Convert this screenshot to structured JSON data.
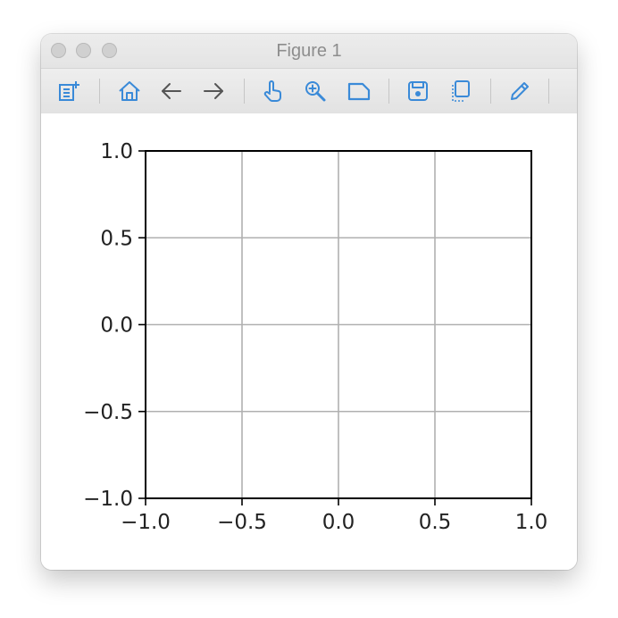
{
  "window": {
    "title": "Figure 1"
  },
  "toolbar": {
    "tools": [
      {
        "name": "edit-parameters-icon"
      },
      {
        "name": "home-icon"
      },
      {
        "name": "back-icon"
      },
      {
        "name": "forward-icon"
      },
      {
        "name": "pan-icon"
      },
      {
        "name": "zoom-icon"
      },
      {
        "name": "subplots-icon"
      },
      {
        "name": "save-icon"
      },
      {
        "name": "copy-icon"
      },
      {
        "name": "edit-curves-icon"
      }
    ],
    "icon_color": "#3a8ad8"
  },
  "chart_data": {
    "type": "line",
    "title": "",
    "xlabel": "",
    "ylabel": "",
    "series": [],
    "xlim": [
      -1.0,
      1.0
    ],
    "ylim": [
      -1.0,
      1.0
    ],
    "xticks": [
      -1.0,
      -0.5,
      0.0,
      0.5,
      1.0
    ],
    "yticks": [
      -1.0,
      -0.5,
      0.0,
      0.5,
      1.0
    ],
    "xtick_labels": [
      "−1.0",
      "−0.5",
      "0.0",
      "0.5",
      "1.0"
    ],
    "ytick_labels": [
      "−1.0",
      "−0.5",
      "0.0",
      "0.5",
      "1.0"
    ],
    "grid": true,
    "grid_color": "#b0b0b0",
    "axes_color": "#000000"
  }
}
